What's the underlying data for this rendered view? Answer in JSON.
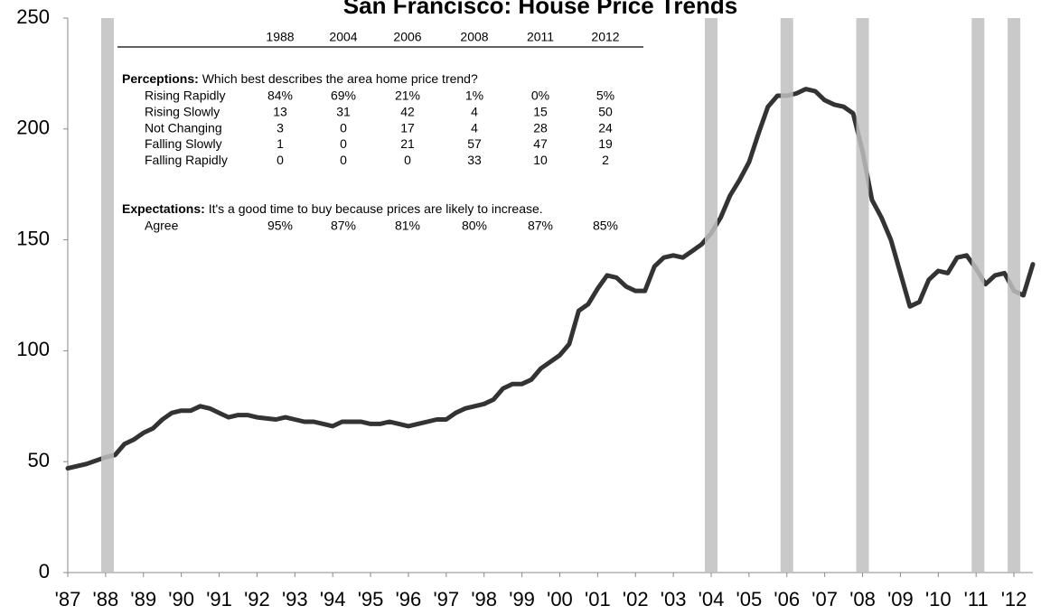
{
  "chart_data": {
    "type": "line",
    "title": "San Francisco:  House Price Trends",
    "xlim": [
      1987,
      2012.5
    ],
    "xticks": [
      {
        "value": 1987,
        "label": "'87"
      },
      {
        "value": 1988,
        "label": "'88"
      },
      {
        "value": 1989,
        "label": "'89"
      },
      {
        "value": 1990,
        "label": "'90"
      },
      {
        "value": 1991,
        "label": "'91"
      },
      {
        "value": 1992,
        "label": "'92"
      },
      {
        "value": 1993,
        "label": "'93"
      },
      {
        "value": 1994,
        "label": "'94"
      },
      {
        "value": 1995,
        "label": "'95"
      },
      {
        "value": 1996,
        "label": "'96"
      },
      {
        "value": 1997,
        "label": "'97"
      },
      {
        "value": 1998,
        "label": "'98"
      },
      {
        "value": 1999,
        "label": "'99"
      },
      {
        "value": 2000,
        "label": "'00"
      },
      {
        "value": 2001,
        "label": "'01"
      },
      {
        "value": 2002,
        "label": "'02"
      },
      {
        "value": 2003,
        "label": "'03"
      },
      {
        "value": 2004,
        "label": "'04"
      },
      {
        "value": 2005,
        "label": "'05"
      },
      {
        "value": 2006,
        "label": "'06"
      },
      {
        "value": 2007,
        "label": "'07"
      },
      {
        "value": 2008,
        "label": "'08"
      },
      {
        "value": 2009,
        "label": "'09"
      },
      {
        "value": 2010,
        "label": "'10"
      },
      {
        "value": 2011,
        "label": "'11"
      },
      {
        "value": 2012,
        "label": "'12"
      }
    ],
    "ylim": [
      0,
      250
    ],
    "yticks": [
      0,
      50,
      100,
      150,
      200,
      250
    ],
    "grid": false,
    "x": [
      1987,
      1987.5,
      1988,
      1988.25,
      1988.5,
      1988.75,
      1989,
      1989.25,
      1989.5,
      1989.75,
      1990,
      1990.25,
      1990.5,
      1990.75,
      1991,
      1991.25,
      1991.5,
      1991.75,
      1992,
      1992.5,
      1992.75,
      1993,
      1993.25,
      1993.5,
      1993.75,
      1994,
      1994.25,
      1994.5,
      1994.75,
      1995,
      1995.25,
      1995.5,
      1995.75,
      1996,
      1996.25,
      1996.5,
      1996.75,
      1997,
      1997.25,
      1997.5,
      1997.75,
      1998,
      1998.25,
      1998.5,
      1998.75,
      1999,
      1999.25,
      1999.5,
      1999.75,
      2000,
      2000.25,
      2000.5,
      2000.75,
      2001,
      2001.25,
      2001.5,
      2001.75,
      2002,
      2002.25,
      2002.5,
      2002.75,
      2003,
      2003.25,
      2003.5,
      2003.75,
      2004,
      2004.25,
      2004.5,
      2004.75,
      2005,
      2005.25,
      2005.5,
      2005.75,
      2006,
      2006.25,
      2006.5,
      2006.75,
      2007,
      2007.25,
      2007.5,
      2007.75,
      2008,
      2008.25,
      2008.5,
      2008.75,
      2009,
      2009.25,
      2009.5,
      2009.75,
      2010,
      2010.25,
      2010.5,
      2010.75,
      2011,
      2011.25,
      2011.5,
      2011.75,
      2012,
      2012.25,
      2012.5
    ],
    "series": [
      {
        "color": "#333333",
        "values": [
          47,
          49,
          52,
          53,
          58,
          60,
          63,
          65,
          69,
          72,
          73,
          73,
          75,
          74,
          72,
          70,
          71,
          71,
          70,
          69,
          70,
          69,
          68,
          68,
          67,
          66,
          68,
          68,
          68,
          67,
          67,
          68,
          67,
          66,
          67,
          68,
          69,
          69,
          72,
          74,
          75,
          76,
          78,
          83,
          85,
          85,
          87,
          92,
          95,
          98,
          103,
          118,
          121,
          128,
          134,
          133,
          129,
          127,
          127,
          138,
          142,
          143,
          142,
          145,
          148,
          153,
          160,
          170,
          177,
          185,
          198,
          210,
          215,
          215,
          216,
          218,
          217,
          213,
          211,
          210,
          207,
          190,
          168,
          160,
          150,
          135,
          120,
          122,
          132,
          136,
          135,
          142,
          143,
          137,
          130,
          134,
          135,
          127,
          125,
          139
        ]
      }
    ],
    "survey_marks": {
      "color": "#c0c0c0",
      "x": [
        1988.05,
        2004,
        2006,
        2008,
        2011.05,
        2012
      ]
    },
    "table": {
      "columns": [
        "1988",
        "2004",
        "2006",
        "2008",
        "2011",
        "2012"
      ],
      "sections": [
        {
          "heading": "Perceptions:",
          "question": "Which best describes the area home price trend?",
          "rows": [
            {
              "label": "Rising Rapidly",
              "values": [
                "84%",
                "69%",
                "21%",
                "1%",
                "0%",
                "5%"
              ]
            },
            {
              "label": "Rising Slowly",
              "values": [
                "13",
                "31",
                "42",
                "4",
                "15",
                "50"
              ]
            },
            {
              "label": "Not Changing",
              "values": [
                "3",
                "0",
                "17",
                "4",
                "28",
                "24"
              ]
            },
            {
              "label": "Falling Slowly",
              "values": [
                "1",
                "0",
                "21",
                "57",
                "47",
                "19"
              ]
            },
            {
              "label": "Falling Rapidly",
              "values": [
                "0",
                "0",
                "0",
                "33",
                "10",
                "2"
              ]
            }
          ]
        },
        {
          "heading": "Expectations:",
          "question": "It's a good time to buy because prices are likely to increase.",
          "rows": [
            {
              "label": "Agree",
              "values": [
                "95%",
                "87%",
                "81%",
                "80%",
                "87%",
                "85%"
              ]
            }
          ]
        }
      ]
    }
  }
}
